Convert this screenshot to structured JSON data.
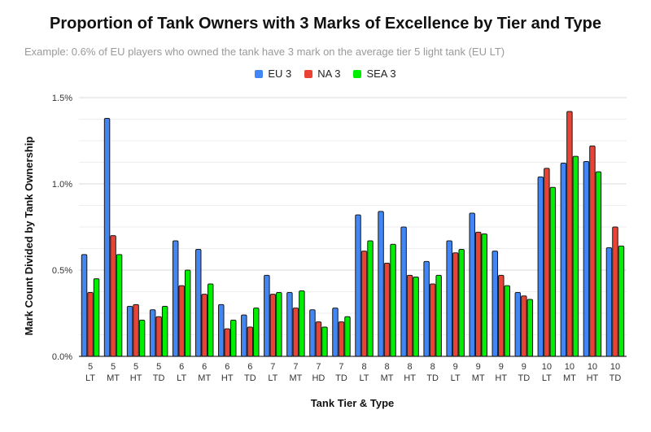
{
  "chart_data": {
    "type": "bar",
    "title": "Proportion of Tank Owners with 3 Marks of Excellence by Tier and Type",
    "subtitle": "Example: 0.6% of EU players who owned the tank have 3 mark on the average tier 5 light tank (EU LT)",
    "xlabel": "Tank Tier & Type",
    "ylabel": "Mark Count Divided by Tank Ownership",
    "ylim": [
      0,
      1.5
    ],
    "yticks": [
      "0.0%",
      "0.5%",
      "1.0%",
      "1.5%"
    ],
    "grid": true,
    "legend_position": "top-center",
    "categories": [
      {
        "tier": "5",
        "type": "LT"
      },
      {
        "tier": "5",
        "type": "MT"
      },
      {
        "tier": "5",
        "type": "HT"
      },
      {
        "tier": "5",
        "type": "TD"
      },
      {
        "tier": "6",
        "type": "LT"
      },
      {
        "tier": "6",
        "type": "MT"
      },
      {
        "tier": "6",
        "type": "HT"
      },
      {
        "tier": "6",
        "type": "TD"
      },
      {
        "tier": "7",
        "type": "LT"
      },
      {
        "tier": "7",
        "type": "MT"
      },
      {
        "tier": "7",
        "type": "HD"
      },
      {
        "tier": "7",
        "type": "TD"
      },
      {
        "tier": "8",
        "type": "LT"
      },
      {
        "tier": "8",
        "type": "MT"
      },
      {
        "tier": "8",
        "type": "HT"
      },
      {
        "tier": "8",
        "type": "TD"
      },
      {
        "tier": "9",
        "type": "LT"
      },
      {
        "tier": "9",
        "type": "MT"
      },
      {
        "tier": "9",
        "type": "HT"
      },
      {
        "tier": "9",
        "type": "TD"
      },
      {
        "tier": "10",
        "type": "LT"
      },
      {
        "tier": "10",
        "type": "MT"
      },
      {
        "tier": "10",
        "type": "HT"
      },
      {
        "tier": "10",
        "type": "TD"
      }
    ],
    "series": [
      {
        "name": "EU 3",
        "color": "#4285f4",
        "values": [
          0.59,
          1.38,
          0.29,
          0.27,
          0.67,
          0.62,
          0.3,
          0.24,
          0.47,
          0.37,
          0.27,
          0.28,
          0.82,
          0.84,
          0.75,
          0.55,
          0.67,
          0.83,
          0.61,
          0.37,
          1.04,
          1.12,
          1.13,
          0.63
        ]
      },
      {
        "name": "NA 3",
        "color": "#ea4335",
        "values": [
          0.37,
          0.7,
          0.3,
          0.23,
          0.41,
          0.36,
          0.16,
          0.17,
          0.36,
          0.28,
          0.2,
          0.2,
          0.61,
          0.54,
          0.47,
          0.42,
          0.6,
          0.72,
          0.47,
          0.35,
          1.09,
          1.42,
          1.22,
          0.75
        ]
      },
      {
        "name": "SEA 3",
        "color": "#00ee00",
        "values": [
          0.45,
          0.59,
          0.21,
          0.29,
          0.5,
          0.42,
          0.21,
          0.28,
          0.37,
          0.38,
          0.17,
          0.23,
          0.67,
          0.65,
          0.46,
          0.47,
          0.62,
          0.71,
          0.41,
          0.33,
          0.98,
          1.16,
          1.07,
          0.64
        ]
      }
    ]
  }
}
